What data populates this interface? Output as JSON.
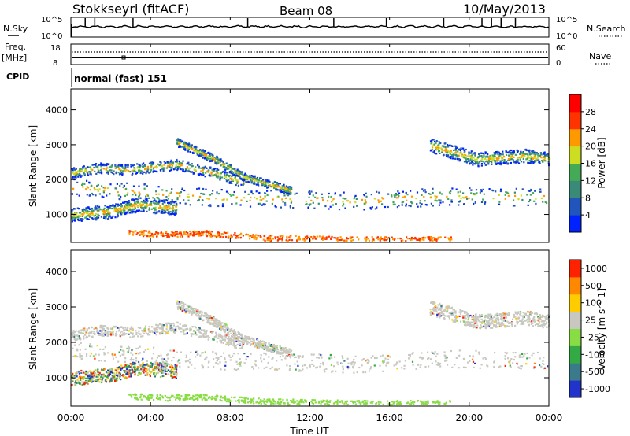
{
  "header": {
    "station": "Stokkseyri (fitACF)",
    "beam": "Beam 08",
    "date": "10/May/2013"
  },
  "top_panels": {
    "nsky_label": "N.Sky",
    "nsearch_label": "N.Search",
    "nsky_ticks": [
      "10^5",
      "10^0"
    ],
    "nsearch_ticks": [
      "10^5",
      "10^0"
    ],
    "freq_label": "Freq.",
    "freq_unit": "[MHz]",
    "freq_ticks": [
      "18",
      "8"
    ],
    "nave_label": "Nave",
    "nave_ticks": [
      "60",
      "0"
    ],
    "cpid_label": "CPID",
    "cpid_value": "normal (fast) 151"
  },
  "chart_data": [
    {
      "type": "heatmap",
      "name": "power",
      "ylabel": "Slant Range [km]",
      "yticks": [
        1000,
        2000,
        3000,
        4000
      ],
      "ylim": [
        200,
        4600
      ],
      "colorbar_label": "Power [dB]",
      "colorbar_ticks": [
        "4",
        "8",
        "12",
        "16",
        "20",
        "24",
        "28"
      ],
      "colorbar_colors": [
        "#0022ff",
        "#2255bb",
        "#3a8a78",
        "#44aa55",
        "#ccdd22",
        "#ff9900",
        "#ff3300",
        "#ff0000"
      ]
    },
    {
      "type": "heatmap",
      "name": "velocity",
      "ylabel": "Slant Range [km]",
      "yticks": [
        1000,
        2000,
        3000,
        4000
      ],
      "ylim": [
        200,
        4600
      ],
      "colorbar_label": "Velocity [m s^-1]",
      "colorbar_ticks": [
        "1000",
        "500",
        "100",
        "25",
        "-25",
        "-100",
        "-500",
        "-1000"
      ],
      "colorbar_colors": [
        "#2233cc",
        "#3a7a8a",
        "#33aa44",
        "#88dd44",
        "#c8c8c0",
        "#ffcc00",
        "#ff8800",
        "#ff2200"
      ]
    }
  ],
  "time_axis": {
    "xlabel": "Time UT",
    "ticks": [
      "00:00",
      "04:00",
      "08:00",
      "12:00",
      "16:00",
      "20:00",
      "00:00"
    ]
  }
}
